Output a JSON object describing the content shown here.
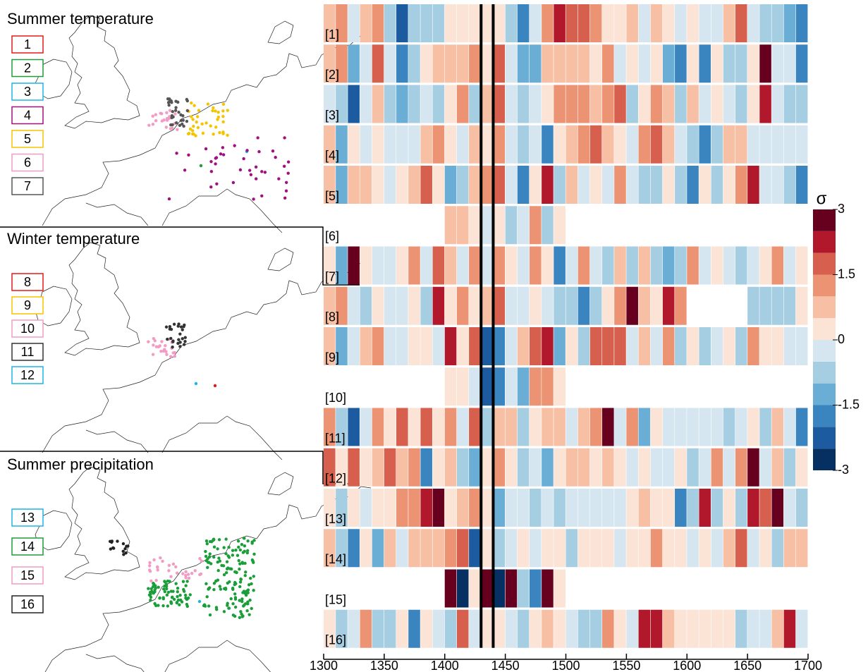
{
  "chart_data": {
    "type": "heatmap",
    "x": [
      1300,
      1310,
      1320,
      1330,
      1340,
      1350,
      1360,
      1370,
      1380,
      1390,
      1400,
      1410,
      1420,
      1430,
      1440,
      1450,
      1460,
      1470,
      1480,
      1490,
      1500,
      1510,
      1520,
      1530,
      1540,
      1550,
      1560,
      1570,
      1580,
      1590,
      1600,
      1610,
      1620,
      1630,
      1640,
      1650,
      1660,
      1670,
      1680,
      1690
    ],
    "xlim": [
      1300,
      1700
    ],
    "xticks": [
      1300,
      1350,
      1400,
      1450,
      1500,
      1550,
      1600,
      1650,
      1700
    ],
    "vlines": [
      1430,
      1440
    ],
    "colorbar": {
      "label": "σ",
      "lim": [
        -3,
        3
      ],
      "ticks": [
        3,
        1.5,
        0,
        -1.5,
        -3
      ],
      "colors": [
        "#053061",
        "#1c5ba0",
        "#3a84bf",
        "#6aaed6",
        "#a6cee3",
        "#d5e6f0",
        "#fbe3d6",
        "#f7c0a5",
        "#ec9373",
        "#d6604d",
        "#b2182b",
        "#67001f"
      ]
    },
    "series": [
      {
        "name": "[1]",
        "values": [
          0.7,
          1.2,
          -0.2,
          0.5,
          1.3,
          -0.8,
          -2.5,
          -1.0,
          -1.0,
          -1.0,
          0.3,
          0.3,
          0.3,
          0.3,
          0.2,
          -0.8,
          -1.6,
          -0.3,
          1.3,
          2.3,
          1.6,
          1.5,
          1.0,
          0.2,
          0.2,
          0.6,
          -0.3,
          0.6,
          0.2,
          -0.5,
          0.3,
          -0.2,
          -0.5,
          0.7,
          1.5,
          -0.3,
          -0.7,
          -0.9,
          -1.3,
          -2.0
        ]
      },
      {
        "name": "[2]",
        "values": [
          0.7,
          1.0,
          -1.3,
          -0.5,
          1.5,
          -0.3,
          -2.0,
          -0.8,
          0.4,
          0.6,
          0.6,
          0.5,
          1.0,
          0.3,
          1.8,
          -0.1,
          -1.2,
          -1.2,
          0.5,
          0.9,
          0.6,
          0.5,
          0.4,
          1.1,
          -0.5,
          0.2,
          -0.2,
          0.3,
          -1.5,
          -1.8,
          0.2,
          -2.0,
          0.2,
          -1.0,
          -0.6,
          0.3,
          2.8,
          -0.3,
          -0.2,
          -1.8
        ]
      },
      {
        "name": "[3]",
        "values": [
          -0.5,
          -1.0,
          -2.2,
          -0.5,
          0.6,
          -0.8,
          -1.5,
          -0.6,
          -0.3,
          -0.8,
          0.3,
          1.2,
          -0.6,
          0.8,
          1.5,
          -0.2,
          -1.0,
          -0.5,
          0.4,
          1.2,
          1.0,
          1.0,
          0.8,
          1.2,
          1.8,
          -0.7,
          0.4,
          1.0,
          0.8,
          -0.6,
          0.5,
          -0.2,
          0.4,
          -0.3,
          -1.0,
          0.3,
          2.0,
          -0.5,
          -1.0,
          -1.0
        ]
      },
      {
        "name": "[4]",
        "values": [
          0.6,
          -1.2,
          0.2,
          -0.3,
          0.3,
          -0.2,
          -0.2,
          -0.5,
          0.5,
          1.0,
          0.3,
          -0.2,
          0.5,
          0.2,
          1.0,
          -0.3,
          -0.6,
          -0.3,
          -1.6,
          0.4,
          0.6,
          1.0,
          1.8,
          0.6,
          0.4,
          -0.3,
          1.3,
          1.6,
          0.6,
          -0.4,
          -0.6,
          -2.0,
          -0.6,
          0.8,
          0.5,
          -0.5,
          -0.5,
          -0.5,
          -0.5,
          -0.1
        ]
      },
      {
        "name": "[5]",
        "values": [
          0.7,
          -1.2,
          0.5,
          0.6,
          0.3,
          -0.2,
          0.3,
          0.8,
          1.5,
          0.3,
          -1.2,
          -0.8,
          0.5,
          1.0,
          1.5,
          -0.2,
          -1.8,
          0.3,
          2.0,
          -0.8,
          0.5,
          -0.5,
          0.4,
          -0.3,
          1.0,
          -0.3,
          -0.8,
          -1.0,
          0.3,
          -1.0,
          -2.0,
          0.2,
          -0.6,
          0.3,
          1.0,
          2.0,
          -0.3,
          -0.5,
          -1.0,
          -2.0
        ]
      },
      {
        "name": "[6]",
        "values": [
          null,
          null,
          null,
          null,
          null,
          null,
          null,
          null,
          null,
          null,
          0.5,
          0.5,
          0.2,
          -0.3,
          0.4,
          -0.6,
          -0.3,
          1.0,
          -0.6,
          0.3,
          null,
          null,
          null,
          null,
          null,
          null,
          null,
          null,
          null,
          null,
          null,
          null,
          null,
          null,
          null,
          null,
          null,
          null,
          null,
          null
        ]
      },
      {
        "name": "[7]",
        "values": [
          0.3,
          -1.2,
          2.8,
          0.2,
          -0.5,
          -0.3,
          0.3,
          1.0,
          -0.3,
          1.8,
          0.7,
          -0.5,
          1.2,
          -0.3,
          1.2,
          0.2,
          -0.3,
          1.0,
          0.3,
          -2.0,
          -0.5,
          1.3,
          -0.3,
          -0.7,
          0.5,
          -0.7,
          0.9,
          -0.6,
          -1.3,
          -0.6,
          1.0,
          -0.3,
          0.4,
          -0.5,
          -1.0,
          -0.3,
          0.2,
          1.0,
          -0.5,
          0.4
        ]
      },
      {
        "name": "[8]",
        "values": [
          0.5,
          1.0,
          -0.3,
          -1.0,
          0.2,
          -0.4,
          -0.2,
          0.4,
          -0.6,
          2.0,
          0.3,
          1.3,
          0.3,
          0.8,
          1.5,
          -0.5,
          -0.3,
          0.2,
          -0.2,
          -0.6,
          -0.6,
          -2.0,
          -1.0,
          0.3,
          1.3,
          2.5,
          0.5,
          0.3,
          2.0,
          1.3,
          null,
          null,
          null,
          null,
          null,
          -0.8,
          -0.8,
          -0.8,
          -0.8,
          0.4
        ]
      },
      {
        "name": "[9]",
        "values": [
          0.8,
          -1.5,
          -0.3,
          0.5,
          1.2,
          -0.5,
          -0.5,
          0.3,
          0.3,
          -0.2,
          2.0,
          0.3,
          1.5,
          -2.2,
          -2.0,
          -0.3,
          0.5,
          1.5,
          2.0,
          -1.5,
          0.3,
          -1.0,
          1.8,
          1.8,
          1.5,
          -0.3,
          0.8,
          -0.5,
          1.0,
          -0.6,
          0.4,
          -0.6,
          -0.3,
          0.2,
          -0.8,
          1.3,
          0.4,
          0.3,
          -0.5,
          -0.2
        ]
      },
      {
        "name": "[10]",
        "values": [
          null,
          null,
          null,
          null,
          null,
          null,
          null,
          null,
          null,
          null,
          0.4,
          0.2,
          -0.3,
          -2.2,
          -2.0,
          -0.4,
          -1.2,
          1.3,
          1.3,
          0.3,
          null,
          null,
          null,
          null,
          null,
          null,
          null,
          null,
          null,
          null,
          null,
          null,
          null,
          null,
          null,
          null,
          null,
          null,
          null,
          null
        ]
      },
      {
        "name": "[11]",
        "values": [
          1.2,
          -0.8,
          -2.2,
          -0.3,
          1.0,
          0.3,
          1.5,
          0.3,
          1.8,
          0.3,
          1.0,
          -0.5,
          1.5,
          -1.0,
          0.8,
          0.6,
          -1.0,
          0.3,
          0.6,
          0.6,
          -0.4,
          0.6,
          1.0,
          2.8,
          -0.5,
          1.2,
          -1.2,
          0.2,
          -0.2,
          -0.4,
          -0.4,
          -0.3,
          -0.2,
          -1.0,
          -0.5,
          0.3,
          -0.8,
          0.8,
          -0.5,
          -1.8
        ]
      },
      {
        "name": "[12]",
        "values": [
          1.5,
          0.4,
          1.8,
          0.2,
          0.6,
          1.8,
          0.5,
          1.3,
          -1.8,
          0.2,
          0.8,
          -0.8,
          -1.2,
          0.4,
          1.0,
          0.3,
          -0.8,
          -0.3,
          -1.2,
          0.4,
          0.6,
          0.5,
          0.4,
          0.8,
          0.3,
          -0.5,
          0.2,
          -0.5,
          -0.5,
          0.3,
          -0.8,
          -0.2,
          1.2,
          -0.5,
          1.0,
          2.7,
          -0.5,
          0.8,
          -1.0,
          0.2
        ]
      },
      {
        "name": "[13]",
        "values": [
          0.3,
          -1.0,
          0.3,
          -0.2,
          0.3,
          0.3,
          1.2,
          1.3,
          2.0,
          3.0,
          0.3,
          0.8,
          1.3,
          0.2,
          -1.2,
          -0.2,
          -0.4,
          -0.8,
          -0.3,
          -0.6,
          -0.3,
          -0.3,
          -0.3,
          -0.3,
          -0.3,
          0.2,
          0.5,
          0.2,
          0.3,
          -1.8,
          -1.0,
          2.3,
          -0.6,
          0.4,
          -0.8,
          2.0,
          1.5,
          3.0,
          -0.3,
          -0.8
        ]
      },
      {
        "name": "[14]",
        "values": [
          0.5,
          -0.8,
          -2.0,
          0.4,
          -1.5,
          0.8,
          -0.3,
          0.8,
          0.8,
          0.8,
          1.0,
          1.8,
          -2.2,
          0.2,
          -1.0,
          -0.2,
          0.3,
          -0.3,
          0.4,
          0.3,
          -0.6,
          0.3,
          0.3,
          0.3,
          -0.4,
          0.2,
          0.4,
          1.2,
          0.3,
          0.4,
          -0.4,
          0.3,
          -0.3,
          0.8,
          1.8,
          -0.2,
          0.4,
          -1.0,
          0.8,
          0.8
        ]
      },
      {
        "name": "[15]",
        "values": [
          null,
          null,
          null,
          null,
          null,
          null,
          null,
          null,
          null,
          null,
          3.0,
          -2.8,
          0.2,
          3.0,
          -2.8,
          2.8,
          -1.0,
          -1.8,
          3.0,
          0.3,
          null,
          null,
          null,
          null,
          null,
          null,
          null,
          null,
          null,
          null,
          null,
          null,
          null,
          null,
          null,
          null,
          null,
          null,
          null,
          null
        ]
      },
      {
        "name": "[16]",
        "values": [
          0.4,
          -1.0,
          -0.2,
          1.0,
          -0.6,
          -0.6,
          0.3,
          -1.6,
          0.3,
          -0.3,
          -0.8,
          1.5,
          -0.3,
          0.2,
          0.3,
          -0.3,
          -0.6,
          0.2,
          0.6,
          0.4,
          -0.3,
          -0.8,
          -0.8,
          1.2,
          0.4,
          -0.3,
          2.0,
          2.0,
          0.5,
          0.2,
          0.2,
          0.2,
          0.2,
          0.3,
          -0.6,
          -0.5,
          -0.3,
          0.6,
          2.2,
          -0.5
        ]
      }
    ],
    "panels": [
      {
        "title": "Summer temperature",
        "groups": [
          {
            "label": "1",
            "color": "#e41a1c"
          },
          {
            "label": "2",
            "color": "#1a9e3a"
          },
          {
            "label": "3",
            "color": "#1fb4e6"
          },
          {
            "label": "4",
            "color": "#a0117f"
          },
          {
            "label": "5",
            "color": "#f5c400"
          },
          {
            "label": "6",
            "color": "#f29bc4"
          },
          {
            "label": "7",
            "color": "#555555"
          }
        ]
      },
      {
        "title": "Winter temperature",
        "groups": [
          {
            "label": "8",
            "color": "#e41a1c"
          },
          {
            "label": "9",
            "color": "#f5c400"
          },
          {
            "label": "10",
            "color": "#f29bc4"
          },
          {
            "label": "11",
            "color": "#333333"
          },
          {
            "label": "12",
            "color": "#1fb4e6"
          }
        ]
      },
      {
        "title": "Summer precipitation",
        "groups": [
          {
            "label": "13",
            "color": "#1fb4e6"
          },
          {
            "label": "14",
            "color": "#1a9e3a"
          },
          {
            "label": "15",
            "color": "#f29bc4"
          },
          {
            "label": "16",
            "color": "#222222"
          }
        ]
      }
    ]
  }
}
